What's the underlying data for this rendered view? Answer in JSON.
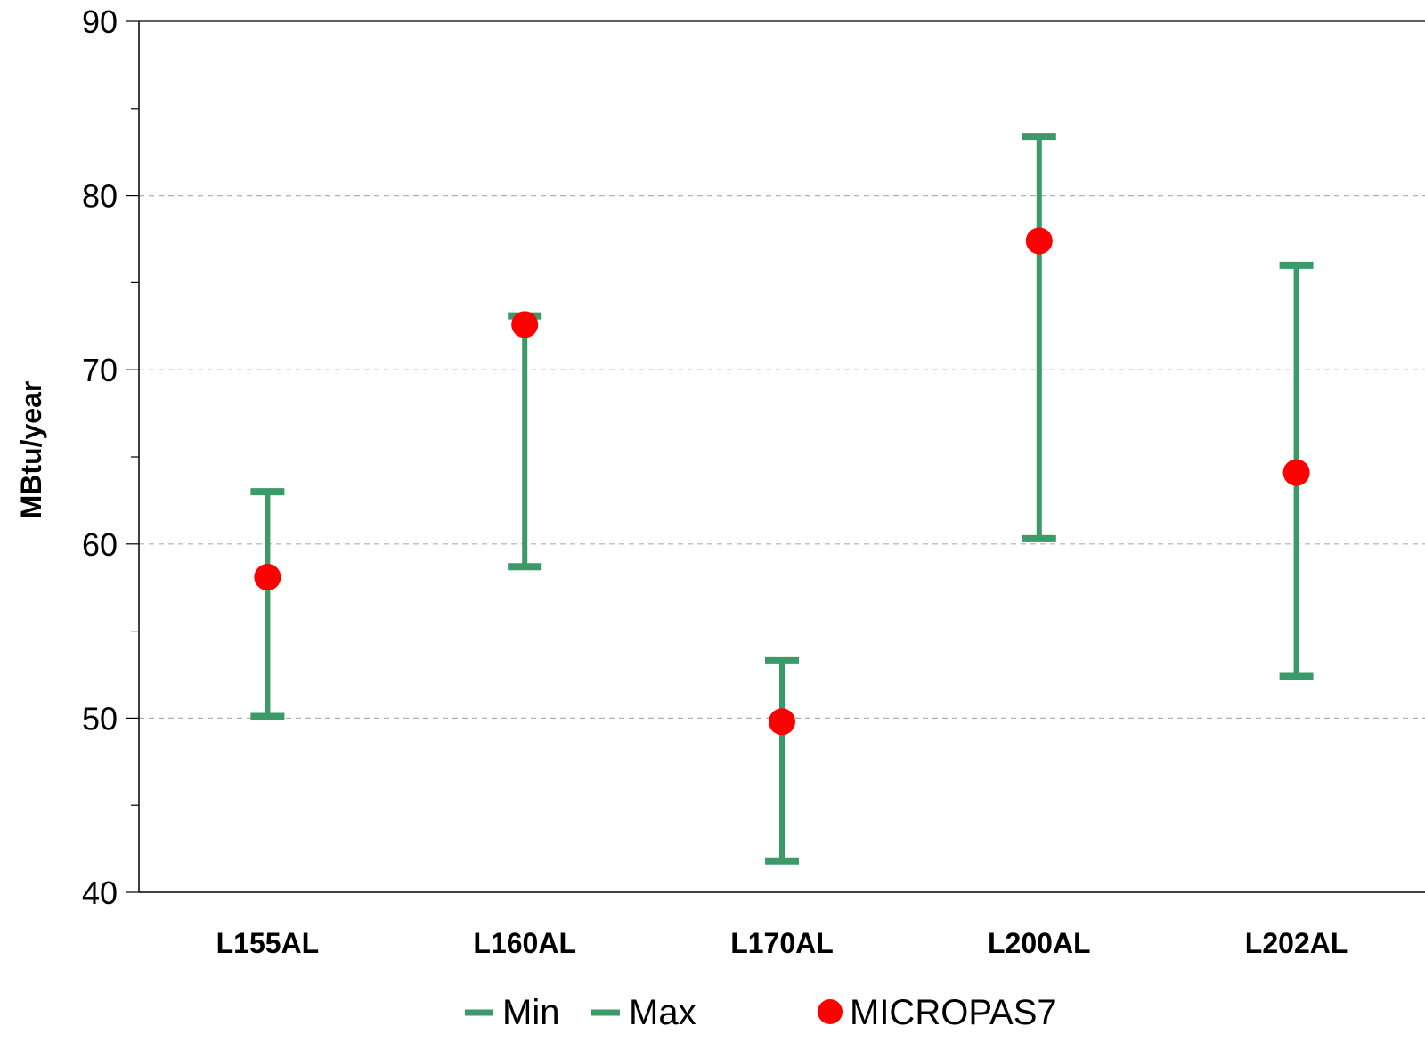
{
  "chart_data": {
    "type": "scatter",
    "categories": [
      "L155AL",
      "L160AL",
      "L170AL",
      "L200AL",
      "L202AL"
    ],
    "series": [
      {
        "name": "Min",
        "values": [
          50.1,
          58.7,
          41.8,
          60.3,
          52.4
        ]
      },
      {
        "name": "Max",
        "values": [
          63.0,
          73.1,
          53.3,
          83.4,
          76.0
        ]
      },
      {
        "name": "MICROPAS7",
        "values": [
          58.1,
          72.6,
          49.8,
          77.4,
          64.1
        ]
      }
    ],
    "ylabel": "MBtu/year",
    "ylim": [
      40,
      90
    ],
    "yticks": [
      "40",
      "50",
      "60",
      "70",
      "80",
      "90"
    ],
    "grid": "horizontal dashed",
    "legend": "bottom",
    "colors": {
      "range": "#3a9a68",
      "point": "#ff0000",
      "grid": "#b0b0b0",
      "axis": "#000000"
    }
  }
}
